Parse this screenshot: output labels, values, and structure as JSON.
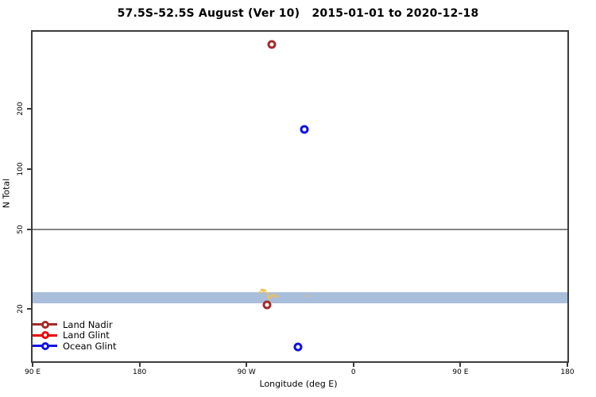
{
  "chart_data": {
    "type": "scatter",
    "title": "57.5S-52.5S August (Ver 10)   2015-01-01 to 2020-12-18",
    "xlabel": "Longitude (deg E)",
    "ylabel": "N Total",
    "x_scale": "linear",
    "y_scale": "log10",
    "xlim": [
      90,
      540
    ],
    "ylim": [
      11,
      485
    ],
    "x_unit": "degrees east, continuous 90..540, labels wrap at 180",
    "grid": "off",
    "x_ticks": [
      {
        "value": 90,
        "label": "90 E"
      },
      {
        "value": 180,
        "label": "180"
      },
      {
        "value": 270,
        "label": "90 W"
      },
      {
        "value": 360,
        "label": "0"
      },
      {
        "value": 450,
        "label": "90 E"
      },
      {
        "value": 540,
        "label": "180"
      }
    ],
    "y_ticks": [
      {
        "value": 20,
        "label": "20"
      },
      {
        "value": 50,
        "label": "50"
      },
      {
        "value": 100,
        "label": "100"
      },
      {
        "value": 200,
        "label": "200"
      }
    ],
    "reference_line": {
      "y": 50,
      "color": "#848484"
    },
    "band": {
      "y_from": 21.5,
      "y_to": 24.4,
      "color": "#a9bedb"
    },
    "series": [
      {
        "name": "Land Nadir",
        "color": "#a52a2a",
        "points": [
          {
            "x": 291.5,
            "y": 420
          },
          {
            "x": 287.5,
            "y": 21
          }
        ]
      },
      {
        "name": "Land Glint",
        "color": "#ee0000",
        "points": []
      },
      {
        "name": "Ocean Glint",
        "color": "#0f0fe8",
        "points": [
          {
            "x": 319,
            "y": 158
          },
          {
            "x": 313,
            "y": 13
          }
        ]
      }
    ],
    "extra_marks": {
      "name": "small-orange-marks",
      "color": "#eec054",
      "points": [
        {
          "x": 281.5,
          "y": 24.3
        },
        {
          "x": 282.3,
          "y": 24.9
        },
        {
          "x": 283.2,
          "y": 25.1
        },
        {
          "x": 284.0,
          "y": 24.6
        },
        {
          "x": 284.8,
          "y": 25.0
        },
        {
          "x": 285.6,
          "y": 24.4
        },
        {
          "x": 286.4,
          "y": 24.8
        },
        {
          "x": 287.2,
          "y": 24.0
        },
        {
          "x": 288.0,
          "y": 23.3
        },
        {
          "x": 288.8,
          "y": 22.8
        },
        {
          "x": 289.6,
          "y": 23.1
        },
        {
          "x": 290.4,
          "y": 22.7
        },
        {
          "x": 291.2,
          "y": 23.4
        },
        {
          "x": 292.2,
          "y": 23.7
        },
        {
          "x": 293.4,
          "y": 23.2
        },
        {
          "x": 294.6,
          "y": 23.5
        },
        {
          "x": 296.2,
          "y": 23.1
        },
        {
          "x": 321.5,
          "y": 23.3
        }
      ]
    },
    "legend": {
      "position": "bottom-left",
      "entries": [
        "Land Nadir",
        "Land Glint",
        "Ocean Glint"
      ]
    }
  }
}
